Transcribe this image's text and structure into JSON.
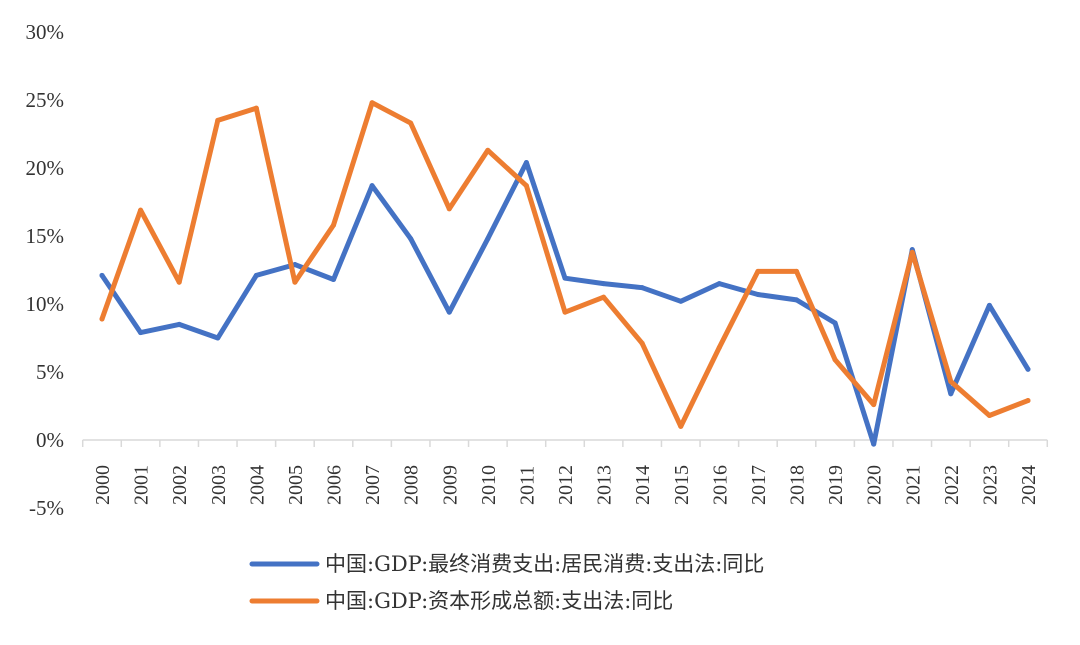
{
  "chart_data": {
    "type": "line",
    "title": "",
    "xlabel": "",
    "ylabel": "",
    "categories": [
      "2000",
      "2001",
      "2002",
      "2003",
      "2004",
      "2005",
      "2006",
      "2007",
      "2008",
      "2009",
      "2010",
      "2011",
      "2012",
      "2013",
      "2014",
      "2015",
      "2016",
      "2017",
      "2018",
      "2019",
      "2020",
      "2021",
      "2022",
      "2023",
      "2024"
    ],
    "ylim": [
      -5,
      30
    ],
    "yticks": [
      -5,
      0,
      5,
      10,
      15,
      20,
      25,
      30
    ],
    "ytick_labels": [
      "-5%",
      "0%",
      "5%",
      "10%",
      "15%",
      "20%",
      "25%",
      "30%"
    ],
    "grid": false,
    "legend_position": "bottom",
    "series": [
      {
        "name": "中国:GDP:最终消费支出:居民消费:支出法:同比",
        "color": "#4472C4",
        "values": [
          12.1,
          7.9,
          8.5,
          7.5,
          12.1,
          12.9,
          11.8,
          18.7,
          14.8,
          9.4,
          14.8,
          20.4,
          11.9,
          11.5,
          11.2,
          10.2,
          11.5,
          10.7,
          10.3,
          8.6,
          -0.3,
          14.0,
          3.4,
          9.9,
          5.2
        ]
      },
      {
        "name": "中国:GDP:资本形成总额:支出法:同比",
        "color": "#ED7D31",
        "values": [
          8.9,
          16.9,
          11.6,
          23.5,
          24.4,
          11.6,
          15.8,
          24.8,
          23.3,
          17.0,
          21.3,
          18.7,
          9.4,
          10.5,
          7.1,
          1.0,
          6.8,
          12.4,
          12.4,
          5.9,
          2.6,
          13.8,
          4.3,
          1.8,
          2.9
        ]
      }
    ]
  }
}
